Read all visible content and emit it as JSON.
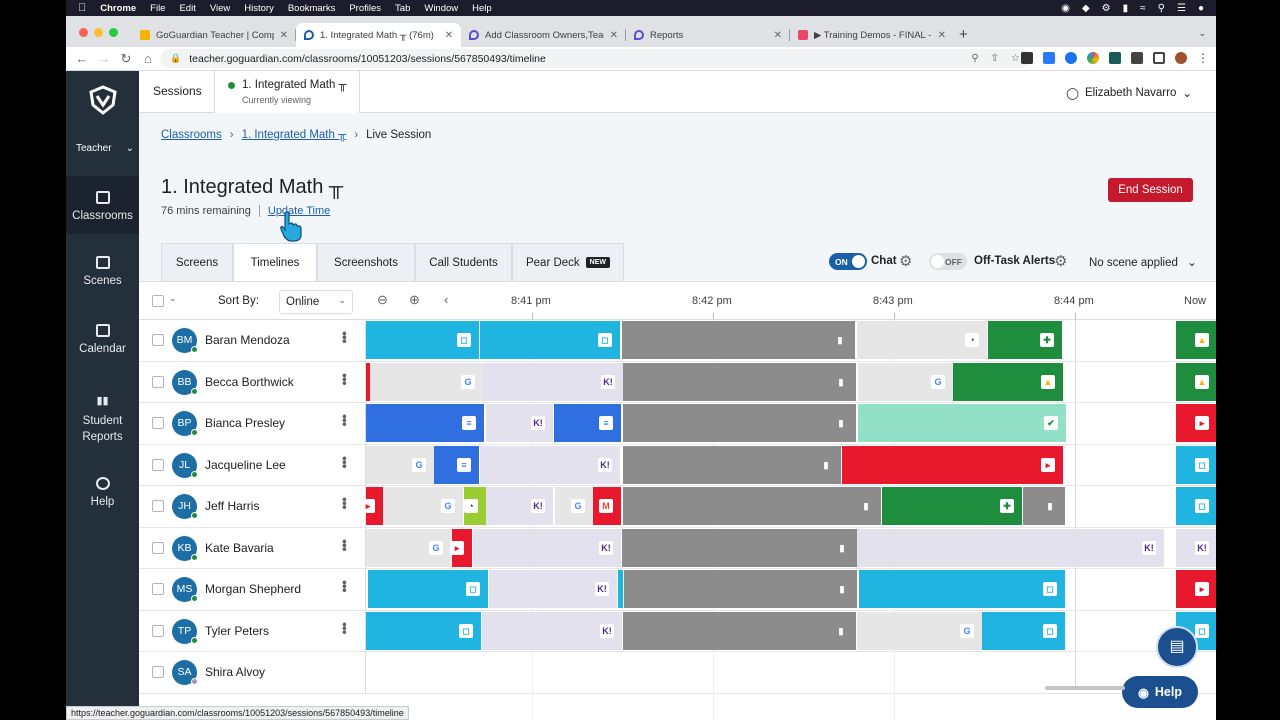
{
  "mac_menu": {
    "app": "Chrome",
    "items": [
      "File",
      "Edit",
      "View",
      "History",
      "Bookmarks",
      "Profiles",
      "Tab",
      "Window",
      "Help"
    ]
  },
  "browser": {
    "tabs": [
      {
        "title": "GoGuardian Teacher | Compreh",
        "color": "#f4b400"
      },
      {
        "title": "1. Integrated Math ╥ (76m)",
        "color": "#1c5fa8"
      },
      {
        "title": "Add Classroom Owners,Teache",
        "color": "#5a4fcf"
      },
      {
        "title": "Reports",
        "color": "#5a4fcf"
      },
      {
        "title": "▶ Training Demos - FINAL - Tra",
        "color": "#e8456b"
      }
    ],
    "url": "teacher.goguardian.com/classrooms/10051203/sessions/567850493/timeline",
    "status_url": "https://teacher.goguardian.com/classrooms/10051203/sessions/567850493/timeline"
  },
  "sidebar": {
    "role": "Teacher",
    "items": [
      {
        "label": "Classrooms",
        "active": true
      },
      {
        "label": "Scenes"
      },
      {
        "label": "Calendar"
      },
      {
        "label": "Student Reports"
      },
      {
        "label": "Help"
      }
    ]
  },
  "topbar": {
    "sessions_label": "Sessions",
    "current_class": "1. Integrated Math ╥",
    "current_sub": "Currently viewing",
    "user": "Elizabeth Navarro"
  },
  "breadcrumb": {
    "root": "Classrooms",
    "class": "1. Integrated Math ╥",
    "current": "Live Session"
  },
  "session": {
    "title": "1. Integrated Math ╥",
    "remaining": "76 mins remaining",
    "update_time": "Update Time",
    "end_session": "End Session"
  },
  "view_tabs": [
    "Screens",
    "Timelines",
    "Screenshots",
    "Call Students",
    "Pear Deck"
  ],
  "new_badge": "NEW",
  "controls": {
    "chat_toggle": "ON",
    "chat_label": "Chat",
    "alerts_toggle": "OFF",
    "alerts_label": "Off-Task Alerts",
    "scene": "No scene applied"
  },
  "table": {
    "sort_by_label": "Sort By:",
    "sort_value": "Online",
    "time_labels": [
      "8:41 pm",
      "8:42 pm",
      "8:43 pm",
      "8:44 pm",
      "Now"
    ],
    "students": [
      {
        "initials": "BM",
        "name": "Baran Mendoza",
        "online": true
      },
      {
        "initials": "BB",
        "name": "Becca Borthwick",
        "online": true
      },
      {
        "initials": "BP",
        "name": "Bianca Presley",
        "online": true
      },
      {
        "initials": "JL",
        "name": "Jacqueline Lee",
        "online": true
      },
      {
        "initials": "JH",
        "name": "Jeff Harris",
        "online": true
      },
      {
        "initials": "KB",
        "name": "Kate Bavaria",
        "online": true
      },
      {
        "initials": "MS",
        "name": "Morgan Shepherd",
        "online": true
      },
      {
        "initials": "TP",
        "name": "Tyler Peters",
        "online": true
      },
      {
        "initials": "SA",
        "name": "Shira Alvoy",
        "online": false
      }
    ]
  },
  "colors": {
    "cyan": "#1fb5e0",
    "gray": "#8c8c8c",
    "lightgray": "#e6e6e6",
    "lavender": "#e4e1ef",
    "blue": "#2f6fe0",
    "red": "#e8192c",
    "green": "#1e8e3e",
    "mint": "#92e0c6",
    "lime": "#9acd32"
  },
  "help_button": "Help"
}
